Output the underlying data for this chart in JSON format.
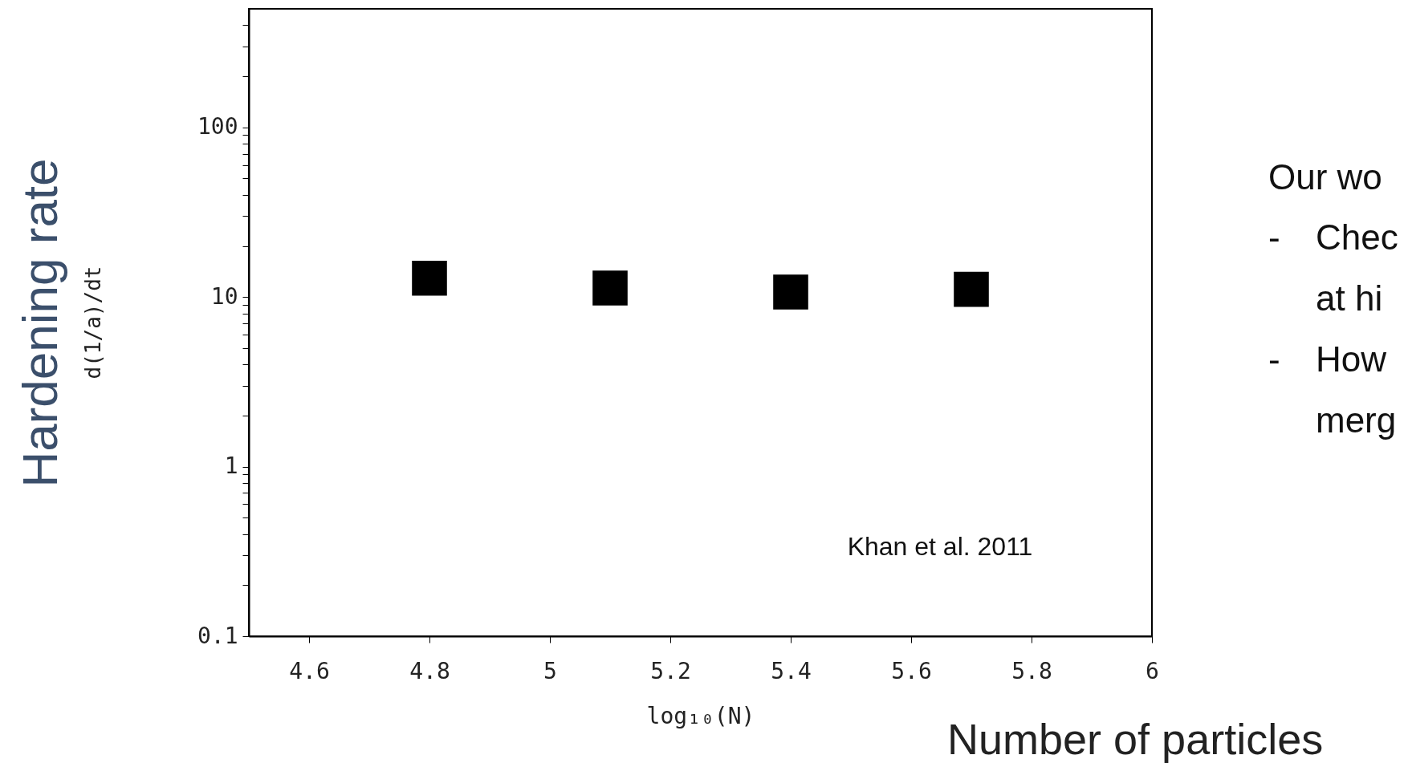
{
  "chart_data": {
    "type": "scatter",
    "xlabel": "log₁₀(N)",
    "ylabel": "Hardening rate",
    "log": "y",
    "marker": "square",
    "grid": false,
    "x": [
      4.8,
      5.1,
      5.4,
      5.7
    ],
    "series": [
      {
        "color": "#000000",
        "values": [
          12.9,
          11.3,
          10.7,
          11.1
        ]
      }
    ],
    "xlim": [
      4.5,
      6
    ],
    "xticks": [
      4.6,
      4.8,
      5,
      5.2,
      5.4,
      5.6,
      5.8,
      6
    ],
    "ylim": [
      0.1,
      500
    ],
    "yticks": [
      0.1,
      {
        "value": 0.2,
        "label": null
      },
      {
        "value": 0.3,
        "label": null
      },
      {
        "value": 0.4,
        "label": null
      },
      {
        "value": 0.5,
        "label": null
      },
      {
        "value": 0.6,
        "label": null
      },
      {
        "value": 0.7,
        "label": null
      },
      {
        "value": 0.8,
        "label": null
      },
      {
        "value": 0.9,
        "label": null
      },
      1,
      {
        "value": 2,
        "label": null
      },
      {
        "value": 3,
        "label": null
      },
      {
        "value": 4,
        "label": null
      },
      {
        "value": 5,
        "label": null
      },
      {
        "value": 6,
        "label": null
      },
      {
        "value": 7,
        "label": null
      },
      {
        "value": 8,
        "label": null
      },
      {
        "value": 9,
        "label": null
      },
      10,
      {
        "value": 20,
        "label": null
      },
      {
        "value": 30,
        "label": null
      },
      {
        "value": 40,
        "label": null
      },
      {
        "value": 50,
        "label": null
      },
      {
        "value": 60,
        "label": null
      },
      {
        "value": 70,
        "label": null
      },
      {
        "value": 80,
        "label": null
      },
      {
        "value": 90,
        "label": null
      },
      100,
      {
        "value": 200,
        "label": null
      },
      {
        "value": 300,
        "label": null
      },
      {
        "value": 400,
        "label": null
      }
    ],
    "annotations": [
      "d(1/a)/dt",
      "Number of particles",
      "Khan et al. 2011",
      "Our wo",
      "-",
      "Chec",
      "at hi",
      "-",
      "How",
      "merg"
    ]
  }
}
